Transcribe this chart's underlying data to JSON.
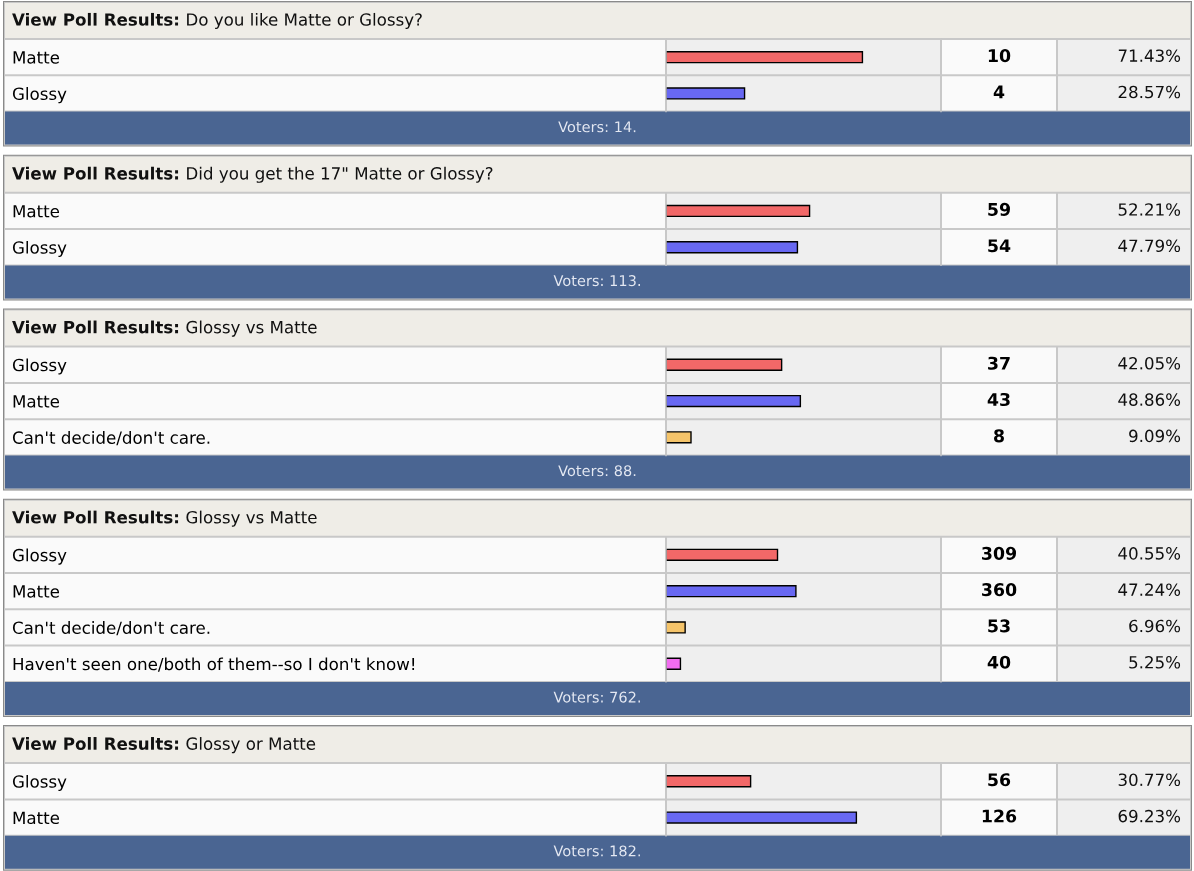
{
  "chart_data": [
    {
      "type": "bar",
      "orientation": "horizontal",
      "title": "View Poll Results:",
      "subtitle": "Do you like Matte or Glossy?",
      "categories": [
        "Matte",
        "Glossy"
      ],
      "values": [
        71.43,
        28.57
      ],
      "value_labels": [
        "71.43%",
        "28.57%"
      ],
      "colors": [
        "#f26868",
        "#6868f2"
      ],
      "xlim": [
        0,
        100
      ],
      "tick_labels": "y",
      "annotations": [
        "10",
        "4",
        "Voters: 14."
      ]
    },
    {
      "type": "bar",
      "orientation": "horizontal",
      "title": "View Poll Results:",
      "subtitle": "Did you get the 17\" Matte or Glossy?",
      "categories": [
        "Matte",
        "Glossy"
      ],
      "values": [
        52.21,
        47.79
      ],
      "value_labels": [
        "52.21%",
        "47.79%"
      ],
      "colors": [
        "#f26868",
        "#6868f2"
      ],
      "xlim": [
        0,
        100
      ],
      "tick_labels": "y",
      "annotations": [
        "59",
        "54",
        "Voters: 113."
      ]
    },
    {
      "type": "bar",
      "orientation": "horizontal",
      "title": "View Poll Results:",
      "subtitle": "Glossy vs Matte",
      "categories": [
        "Glossy",
        "Matte",
        "Can't decide/don't care."
      ],
      "values": [
        42.05,
        48.86,
        9.09
      ],
      "value_labels": [
        "42.05%",
        "48.86%",
        "9.09%"
      ],
      "colors": [
        "#f26868",
        "#6868f2",
        "#f5c46a"
      ],
      "xlim": [
        0,
        100
      ],
      "tick_labels": "y",
      "annotations": [
        "37",
        "43",
        "8",
        "Voters: 88."
      ]
    },
    {
      "type": "bar",
      "orientation": "horizontal",
      "title": "View Poll Results:",
      "subtitle": "Glossy vs Matte",
      "categories": [
        "Glossy",
        "Matte",
        "Can't decide/don't care.",
        "Haven't seen one/both of them--so I don't know!"
      ],
      "values": [
        40.55,
        47.24,
        6.96,
        5.25
      ],
      "value_labels": [
        "40.55%",
        "47.24%",
        "6.96%",
        "5.25%"
      ],
      "colors": [
        "#f26868",
        "#6868f2",
        "#f5c46a",
        "#f26cf0"
      ],
      "xlim": [
        0,
        100
      ],
      "tick_labels": "y",
      "annotations": [
        "309",
        "360",
        "53",
        "40",
        "Voters: 762."
      ]
    },
    {
      "type": "bar",
      "orientation": "horizontal",
      "title": "View Poll Results:",
      "subtitle": "Glossy or Matte",
      "categories": [
        "Glossy",
        "Matte"
      ],
      "values": [
        30.77,
        69.23
      ],
      "value_labels": [
        "30.77%",
        "69.23%"
      ],
      "colors": [
        "#f26868",
        "#6868f2"
      ],
      "xlim": [
        0,
        100
      ],
      "tick_labels": "y",
      "annotations": [
        "56",
        "126",
        "Voters: 182."
      ]
    }
  ]
}
